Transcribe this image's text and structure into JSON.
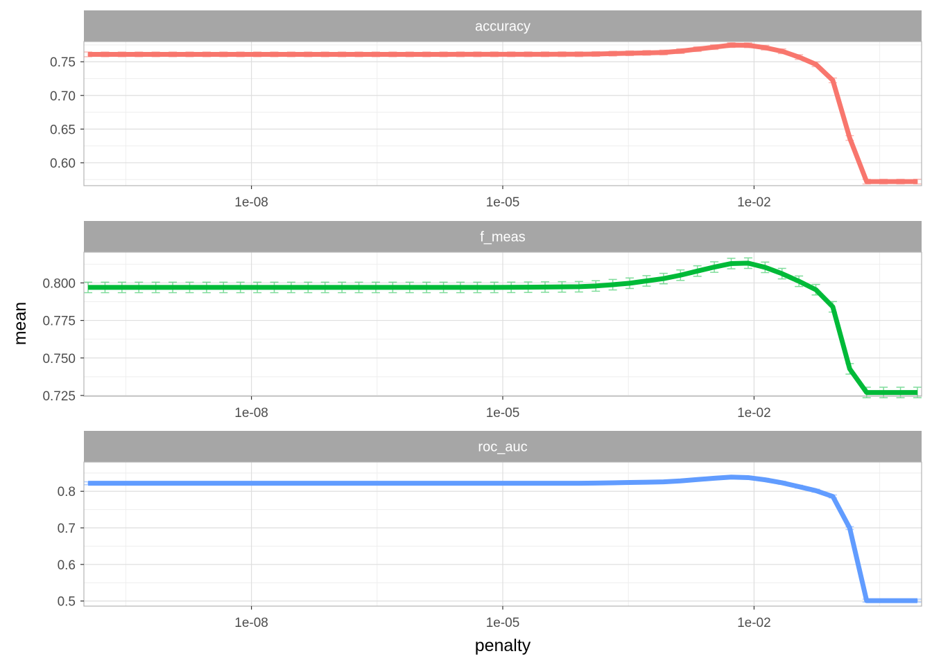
{
  "chart_data": {
    "type": "line",
    "facet_layout": "stacked panels, free y scales, shared x",
    "xlabel": "penalty",
    "ylabel": "mean",
    "x_scale": "log10",
    "xlim": [
      1e-10,
      1
    ],
    "x_ticks": [
      1e-08,
      1e-05,
      0.01
    ],
    "x_tick_labels": [
      "1e-08",
      "1e-05",
      "1e-02"
    ],
    "grid": true,
    "legend": "none",
    "error_bars": "mean ± std_err at every penalty value",
    "panels": [
      {
        "strip": "accuracy",
        "color": "#F8766D",
        "ylim": [
          0.566,
          0.78
        ],
        "y_ticks": [
          0.6,
          0.65,
          0.7,
          0.75
        ],
        "y_tick_labels": [
          "0.60",
          "0.65",
          "0.70",
          "0.75"
        ],
        "std_err": 0.0035,
        "points": [
          [
            1e-10,
            0.761
          ],
          [
            1e-06,
            0.761
          ],
          [
            0.0001,
            0.7612
          ],
          [
            0.001,
            0.764
          ],
          [
            0.003,
            0.771
          ],
          [
            0.006,
            0.7755
          ],
          [
            0.01,
            0.774
          ],
          [
            0.02,
            0.767
          ],
          [
            0.05,
            0.75
          ],
          [
            0.08,
            0.73
          ],
          [
            0.1,
            0.71
          ],
          [
            0.13,
            0.66
          ],
          [
            0.16,
            0.585
          ],
          [
            0.2,
            0.572
          ],
          [
            1,
            0.572
          ]
        ]
      },
      {
        "strip": "f_meas",
        "color": "#00BA38",
        "ylim": [
          0.7245,
          0.8205
        ],
        "y_ticks": [
          0.725,
          0.75,
          0.775,
          0.8
        ],
        "y_tick_labels": [
          "0.725",
          "0.750",
          "0.775",
          "0.800"
        ],
        "std_err": 0.0035,
        "points": [
          [
            1e-10,
            0.797
          ],
          [
            1e-05,
            0.797
          ],
          [
            0.0001,
            0.7975
          ],
          [
            0.0003,
            0.7995
          ],
          [
            0.001,
            0.8035
          ],
          [
            0.003,
            0.81
          ],
          [
            0.006,
            0.8135
          ],
          [
            0.01,
            0.813
          ],
          [
            0.02,
            0.807
          ],
          [
            0.05,
            0.797
          ],
          [
            0.08,
            0.789
          ],
          [
            0.1,
            0.776
          ],
          [
            0.13,
            0.748
          ],
          [
            0.16,
            0.731
          ],
          [
            0.2,
            0.727
          ],
          [
            1,
            0.727
          ]
        ]
      },
      {
        "strip": "roc_auc",
        "color": "#619CFF",
        "ylim": [
          0.486,
          0.88
        ],
        "y_ticks": [
          0.5,
          0.6,
          0.7,
          0.8
        ],
        "y_tick_labels": [
          "0.5",
          "0.6",
          "0.7",
          "0.8"
        ],
        "std_err": 0.004,
        "points": [
          [
            1e-10,
            0.822
          ],
          [
            0.0001,
            0.822
          ],
          [
            0.001,
            0.826
          ],
          [
            0.003,
            0.835
          ],
          [
            0.006,
            0.8395
          ],
          [
            0.01,
            0.8365
          ],
          [
            0.02,
            0.825
          ],
          [
            0.05,
            0.804
          ],
          [
            0.08,
            0.792
          ],
          [
            0.1,
            0.776
          ],
          [
            0.13,
            0.735
          ],
          [
            0.16,
            0.62
          ],
          [
            0.2,
            0.501
          ],
          [
            1,
            0.501
          ]
        ]
      }
    ]
  },
  "colors": {
    "panel_background": "#ffffff",
    "panel_border": "#b3b3b3",
    "grid_major": "#dedede",
    "grid_minor": "#eeeeee",
    "strip_background": "#a6a6a6",
    "strip_text": "#ffffff",
    "tick_label": "#4d4d4d"
  }
}
